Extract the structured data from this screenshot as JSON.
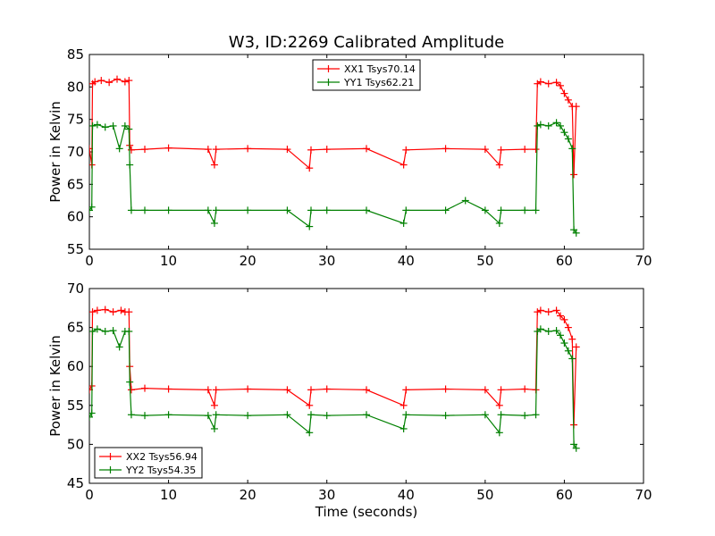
{
  "figure_title": "W3, ID:2269 Calibrated Amplitude",
  "chart_data": [
    {
      "type": "line",
      "marker": "+",
      "xlabel": "",
      "ylabel": "Power in Kelvin",
      "xlim": [
        0,
        70
      ],
      "ylim": [
        55,
        85
      ],
      "xticks": [
        "0",
        "10",
        "20",
        "30",
        "40",
        "50",
        "60",
        "70"
      ],
      "yticks": [
        "55",
        "60",
        "65",
        "70",
        "75",
        "80",
        "85"
      ],
      "legend_position": "top-center",
      "series": [
        {
          "name": "XX1 Tsys70.14",
          "color": "#ff0000",
          "x": [
            0.0,
            0.3,
            0.4,
            0.7,
            1.5,
            2.5,
            3.5,
            4.5,
            5.0,
            5.1,
            5.3,
            7,
            10,
            15,
            15.8,
            16,
            20,
            25,
            27.8,
            28,
            30,
            35,
            39.7,
            40,
            45,
            50,
            51.8,
            52,
            55,
            56.4,
            56.6,
            57,
            58,
            59,
            59.5,
            60,
            60.5,
            61,
            61.2,
            61.5
          ],
          "values": [
            70.5,
            68.0,
            80.5,
            80.8,
            81.0,
            80.7,
            81.2,
            80.8,
            81.0,
            71.0,
            70.3,
            70.4,
            70.6,
            70.4,
            68.0,
            70.4,
            70.5,
            70.4,
            67.5,
            70.3,
            70.4,
            70.5,
            68.0,
            70.3,
            70.5,
            70.4,
            68.0,
            70.3,
            70.4,
            70.4,
            80.5,
            80.8,
            80.5,
            80.7,
            80.2,
            79.0,
            78.0,
            77.0,
            66.5,
            77.0
          ]
        },
        {
          "name": "YY1 Tsys62.21",
          "color": "#008000",
          "x": [
            0.0,
            0.3,
            0.4,
            1.0,
            2.0,
            3.0,
            3.8,
            4.5,
            5.0,
            5.1,
            5.3,
            7,
            10,
            15,
            15.8,
            16,
            20,
            25,
            27.8,
            28,
            30,
            35,
            39.7,
            40,
            45,
            47.5,
            50,
            51.8,
            52,
            55,
            56.4,
            56.6,
            57,
            58,
            59,
            59.5,
            60,
            60.5,
            61,
            61.2,
            61.5
          ],
          "values": [
            61.0,
            61.5,
            74.0,
            74.2,
            73.8,
            74.0,
            70.5,
            74.0,
            73.5,
            68.0,
            61.0,
            61.0,
            61.0,
            61.0,
            59.0,
            61.0,
            61.0,
            61.0,
            58.5,
            61.0,
            61.0,
            61.0,
            59.0,
            61.0,
            61.0,
            62.5,
            61.0,
            59.0,
            61.0,
            61.0,
            61.0,
            74.0,
            74.2,
            74.0,
            74.5,
            74.0,
            73.0,
            72.0,
            70.5,
            58.0,
            57.5
          ]
        }
      ]
    },
    {
      "type": "line",
      "marker": "+",
      "xlabel": "Time (seconds)",
      "ylabel": "Power in Kelvin",
      "xlim": [
        0,
        70
      ],
      "ylim": [
        45,
        70
      ],
      "xticks": [
        "0",
        "10",
        "20",
        "30",
        "40",
        "50",
        "60",
        "70"
      ],
      "yticks": [
        "45",
        "50",
        "55",
        "60",
        "65",
        "70"
      ],
      "legend_position": "bottom-left",
      "series": [
        {
          "name": "XX2 Tsys56.94",
          "color": "#ff0000",
          "x": [
            0.0,
            0.3,
            0.4,
            1.0,
            2.0,
            3.0,
            4.0,
            4.5,
            5.0,
            5.1,
            5.3,
            7,
            10,
            15,
            15.8,
            16,
            20,
            25,
            27.8,
            28,
            30,
            35,
            39.7,
            40,
            45,
            50,
            51.8,
            52,
            55,
            56.4,
            56.6,
            57,
            58,
            59,
            59.5,
            60,
            60.5,
            61,
            61.2,
            61.5
          ],
          "values": [
            57.0,
            57.5,
            67.0,
            67.2,
            67.3,
            67.0,
            67.2,
            67.0,
            67.0,
            60.0,
            57.0,
            57.2,
            57.1,
            57.0,
            55.0,
            57.0,
            57.1,
            57.0,
            55.0,
            57.0,
            57.1,
            57.0,
            55.0,
            57.0,
            57.1,
            57.0,
            55.0,
            57.0,
            57.1,
            57.0,
            67.0,
            67.2,
            67.0,
            67.2,
            66.5,
            66.0,
            65.0,
            63.5,
            52.5,
            62.5
          ]
        },
        {
          "name": "YY2 Tsys54.35",
          "color": "#008000",
          "x": [
            0.0,
            0.3,
            0.4,
            1.0,
            2.0,
            3.0,
            3.8,
            4.5,
            5.0,
            5.1,
            5.3,
            7,
            10,
            15,
            15.8,
            16,
            20,
            25,
            27.8,
            28,
            30,
            35,
            39.7,
            40,
            45,
            50,
            51.8,
            52,
            55,
            56.4,
            56.6,
            57,
            58,
            59,
            59.5,
            60,
            60.5,
            61,
            61.2,
            61.5
          ],
          "values": [
            53.5,
            54.0,
            64.5,
            64.8,
            64.5,
            64.6,
            62.5,
            64.5,
            64.5,
            58.0,
            53.8,
            53.7,
            53.8,
            53.7,
            52.0,
            53.8,
            53.7,
            53.8,
            51.5,
            53.8,
            53.7,
            53.8,
            52.0,
            53.8,
            53.7,
            53.8,
            51.5,
            53.8,
            53.7,
            53.8,
            64.5,
            64.8,
            64.5,
            64.6,
            64.0,
            63.0,
            62.0,
            61.0,
            50.0,
            49.5
          ]
        }
      ]
    }
  ]
}
